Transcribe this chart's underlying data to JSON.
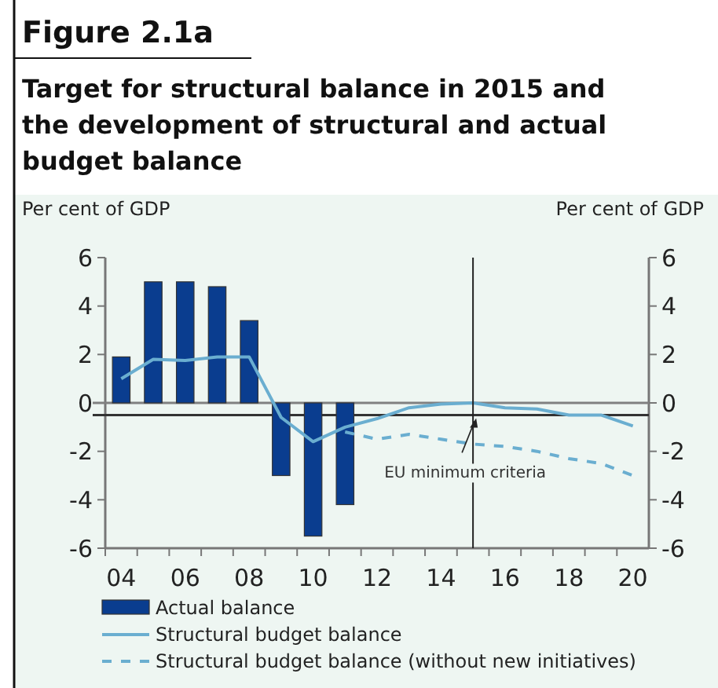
{
  "chart_data": {
    "type": "bar",
    "title": "Figure 2.1a",
    "subtitle": "Target for structural balance in 2015 and the development of structural and actual budget balance",
    "ylabel": "Per cent of GDP",
    "y2label": "Per cent of GDP",
    "xlim": [
      2003.5,
      2020.5
    ],
    "xticks": [
      {
        "value": 2004,
        "label": "04"
      },
      {
        "value": 2006,
        "label": "06"
      },
      {
        "value": 2008,
        "label": "08"
      },
      {
        "value": 2010,
        "label": "10"
      },
      {
        "value": 2012,
        "label": "12"
      },
      {
        "value": 2014,
        "label": "14"
      },
      {
        "value": 2016,
        "label": "16"
      },
      {
        "value": 2018,
        "label": "18"
      },
      {
        "value": 2020,
        "label": "20"
      }
    ],
    "ylim": [
      -6,
      6
    ],
    "yticks": [
      -6,
      -4,
      -2,
      0,
      2,
      4,
      6
    ],
    "y2lim": [
      -6,
      6
    ],
    "y2ticks": [
      -6,
      -4,
      -2,
      0,
      2,
      4,
      6
    ],
    "series": [
      {
        "name": "Actual balance",
        "color": "#0a3d8f",
        "x": [
          2004,
          2005,
          2006,
          2007,
          2008,
          2009,
          2010,
          2011
        ],
        "values": [
          1.9,
          5.0,
          5.0,
          4.8,
          3.4,
          -3.0,
          -5.5,
          -4.2
        ]
      },
      {
        "name": "Structural budget balance",
        "type": "line",
        "color": "#6aaed0",
        "line_style": "solid",
        "x": [
          2004,
          2005,
          2006,
          2007,
          2008,
          2009,
          2010,
          2011,
          2012,
          2013,
          2014,
          2015,
          2016,
          2017,
          2018,
          2019,
          2020
        ],
        "values": [
          1.0,
          1.8,
          1.75,
          1.9,
          1.9,
          -0.6,
          -1.6,
          -1.0,
          -0.65,
          -0.2,
          -0.05,
          0.0,
          -0.2,
          -0.25,
          -0.5,
          -0.5,
          -0.95
        ]
      },
      {
        "name": "Structural budget balance (without new initiatives)",
        "type": "line",
        "color": "#6aaed0",
        "line_style": "dashed",
        "x": [
          2011,
          2012,
          2013,
          2014,
          2015,
          2016,
          2017,
          2018,
          2019,
          2020
        ],
        "values": [
          -1.2,
          -1.5,
          -1.3,
          -1.5,
          -1.7,
          -1.8,
          -2.0,
          -2.3,
          -2.5,
          -3.0
        ]
      }
    ],
    "ref_lines": [
      {
        "axis": "y",
        "value": 0,
        "color": "#808080"
      },
      {
        "axis": "y",
        "value": -0.5,
        "color": "#333333"
      },
      {
        "axis": "x",
        "value": 2015,
        "color": "#222222"
      }
    ],
    "annotations": [
      {
        "text": "EU minimum criteria",
        "x": 2015,
        "y": -0.5
      }
    ],
    "legend": "bottom",
    "grid": false
  }
}
